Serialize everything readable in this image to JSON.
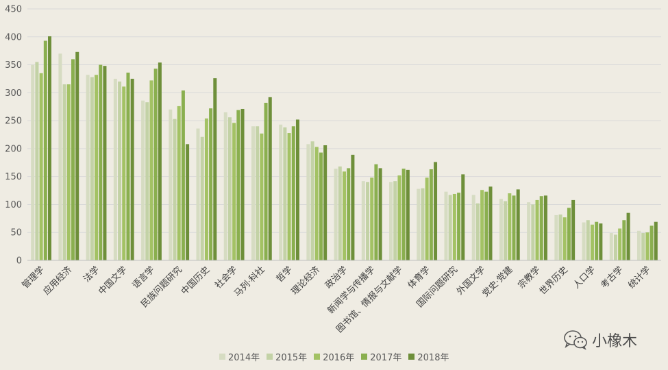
{
  "chart_data": {
    "type": "bar",
    "categories": [
      "管理学",
      "应用经济",
      "法学",
      "中国文学",
      "语言学",
      "民族问题研究",
      "中国历史",
      "社会学",
      "马列·科社",
      "哲学",
      "理论经济",
      "政治学",
      "新闻学与传播学",
      "图书馆、情报与文献学",
      "体育学",
      "国际问题研究",
      "外国文学",
      "党史·党建",
      "宗教学",
      "世界历史",
      "人口学",
      "考古学",
      "统计学"
    ],
    "series": [
      {
        "name": "2014年",
        "color": "#d6dcc2",
        "values": [
          350,
          370,
          332,
          325,
          286,
          270,
          236,
          265,
          240,
          243,
          208,
          164,
          142,
          140,
          128,
          123,
          117,
          110,
          104,
          81,
          68,
          49,
          53
        ]
      },
      {
        "name": "2015年",
        "color": "#c3d2a6",
        "values": [
          355,
          315,
          328,
          320,
          283,
          253,
          221,
          256,
          240,
          238,
          213,
          168,
          140,
          142,
          129,
          117,
          102,
          106,
          100,
          82,
          72,
          46,
          49
        ]
      },
      {
        "name": "2016年",
        "color": "#a3c264",
        "values": [
          335,
          315,
          332,
          311,
          322,
          276,
          254,
          246,
          227,
          228,
          203,
          159,
          148,
          152,
          148,
          119,
          126,
          120,
          108,
          77,
          64,
          57,
          50
        ]
      },
      {
        "name": "2017年",
        "color": "#8aaf4f",
        "values": [
          393,
          360,
          350,
          336,
          343,
          304,
          272,
          269,
          282,
          240,
          193,
          165,
          172,
          164,
          163,
          121,
          123,
          116,
          115,
          94,
          69,
          72,
          62
        ]
      },
      {
        "name": "2018年",
        "color": "#6e8f3a",
        "values": [
          401,
          373,
          348,
          325,
          354,
          208,
          326,
          271,
          292,
          252,
          206,
          189,
          165,
          162,
          176,
          154,
          132,
          127,
          116,
          108,
          66,
          85,
          69
        ]
      }
    ],
    "ylim": [
      0,
      450
    ],
    "yticks": [
      0,
      50,
      100,
      150,
      200,
      250,
      300,
      350,
      400,
      450
    ],
    "grid": true,
    "legend": "bottom"
  },
  "watermark": {
    "icon": "wechat-icon",
    "text": "小橡木"
  }
}
